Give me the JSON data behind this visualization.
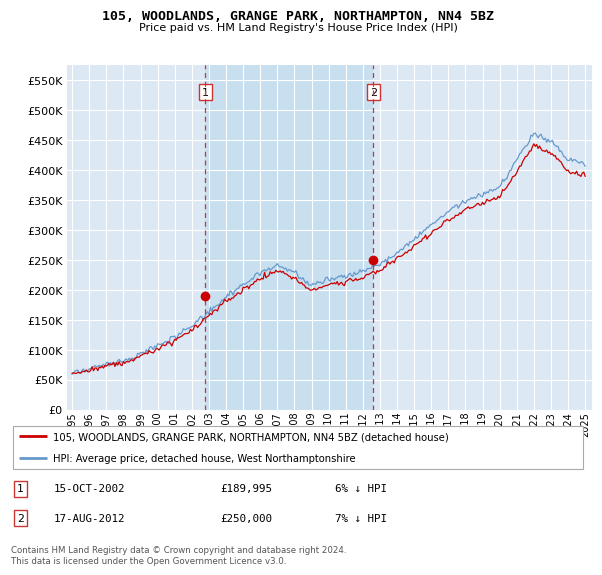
{
  "title": "105, WOODLANDS, GRANGE PARK, NORTHAMPTON, NN4 5BZ",
  "subtitle": "Price paid vs. HM Land Registry's House Price Index (HPI)",
  "bg_color": "#ffffff",
  "plot_bg_color": "#dce9f5",
  "grid_color": "#ffffff",
  "ylim": [
    0,
    575000
  ],
  "yticks": [
    0,
    50000,
    100000,
    150000,
    200000,
    250000,
    300000,
    350000,
    400000,
    450000,
    500000,
    550000
  ],
  "legend_label_red": "105, WOODLANDS, GRANGE PARK, NORTHAMPTON, NN4 5BZ (detached house)",
  "legend_label_blue": "HPI: Average price, detached house, West Northamptonshire",
  "annotation1_date": "15-OCT-2002",
  "annotation1_price": "£189,995",
  "annotation1_hpi": "6% ↓ HPI",
  "annotation2_date": "17-AUG-2012",
  "annotation2_price": "£250,000",
  "annotation2_hpi": "7% ↓ HPI",
  "footnote": "Contains HM Land Registry data © Crown copyright and database right 2024.\nThis data is licensed under the Open Government Licence v3.0.",
  "red_line_color": "#cc0000",
  "blue_line_color": "#6699cc",
  "vline_color": "#cc3333",
  "shade_color": "#c8dff0",
  "marker1_year": 2002.79,
  "marker1_y": 189995,
  "marker2_year": 2012.62,
  "marker2_y": 250000,
  "vline1_x": 2002.79,
  "vline2_x": 2012.62,
  "xlim_left": 1994.7,
  "xlim_right": 2025.4
}
